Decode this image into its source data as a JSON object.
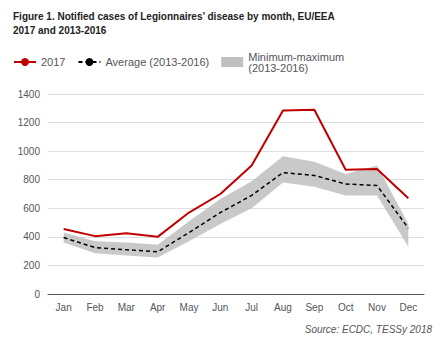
{
  "chart_data": {
    "type": "line",
    "title": "Figure 1. Notified cases of Legionnaires’ disease by month, EU/EEA",
    "subtitle": "2017 and 2013-2016",
    "annotations": [
      "Source: ECDC, TESSy 2018"
    ],
    "categories": [
      "Jan",
      "Feb",
      "Mar",
      "Apr",
      "May",
      "Jun",
      "Jul",
      "Aug",
      "Sep",
      "Oct",
      "Nov",
      "Dec"
    ],
    "series": [
      {
        "name": "2017",
        "type": "line",
        "color": "#c00000",
        "line_style": "solid",
        "values": [
          455,
          405,
          425,
          400,
          570,
          700,
          900,
          1285,
          1290,
          870,
          875,
          670
        ]
      },
      {
        "name": "Average (2013-2016)",
        "type": "line",
        "color": "#000000",
        "line_style": "dashed",
        "values": [
          395,
          325,
          310,
          295,
          430,
          570,
          690,
          850,
          830,
          770,
          760,
          460
        ]
      },
      {
        "name": "Minimum-maximum\n(2013-2016)",
        "type": "band",
        "color": "#c0c0c0",
        "lower": [
          360,
          285,
          270,
          255,
          370,
          490,
          600,
          780,
          750,
          690,
          690,
          330
        ],
        "upper": [
          430,
          370,
          360,
          345,
          510,
          665,
          790,
          965,
          925,
          840,
          900,
          490
        ]
      }
    ],
    "ylim": [
      0,
      1400
    ],
    "yticks": [
      0,
      200,
      400,
      600,
      800,
      1000,
      1200,
      1400
    ],
    "grid": true,
    "legend": "upper left"
  }
}
